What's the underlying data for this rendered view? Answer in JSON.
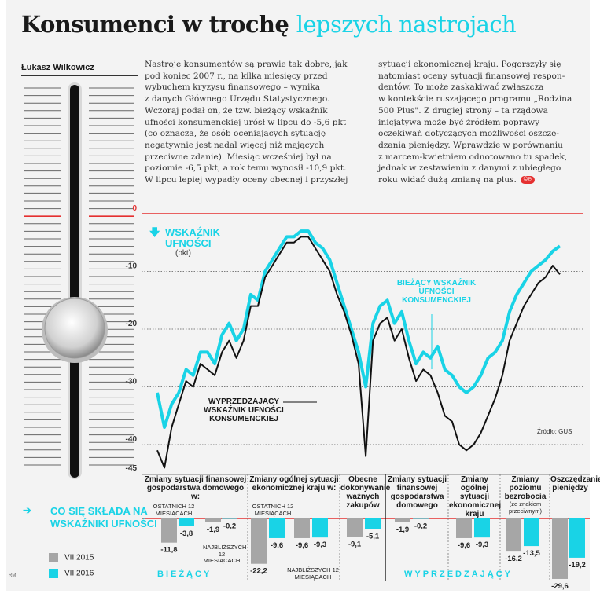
{
  "header": {
    "title_dark": "Konsumenci w trochę",
    "title_light": "lepszych nastrojach",
    "author": "Łukasz Wilkowicz",
    "copyright_mark": "©℗"
  },
  "article": {
    "col1": [
      "Nastroje konsumentów są prawie tak dobre, jak",
      "pod koniec 2007 r., na kilka miesięcy przed",
      "wybuchem kryzysu finansowego – wynika",
      "z danych Głównego Urzędu Statystycznego.",
      "Wczoraj podał on, że tzw. bieżący wskaźnik",
      "ufności konsumenckiej urósł w lipcu do -5,6 pkt",
      "(co oznacza, że osób oceniających sytuację",
      "negatywnie jest nadal więcej niż mających",
      "przeciwne zdanie). Miesiąc wcześniej był na",
      "poziomie -6,5 pkt, a rok temu wynosił -10,9 pkt.",
      "W lipcu lepiej wypadły oceny obecnej i przyszłej"
    ],
    "col2": [
      "sytuacji ekonomicznej kraju. Pogorszyły się",
      "natomiast oceny sytuacji finansowej respon-",
      "dentów. To może zaskakiwać zwłaszcza",
      "w kontekście ruszającego programu „Rodzina",
      "500 Plus\". Z drugiej strony – ta rządowa",
      "inicjatywa może być źródłem poprawy",
      "oczekiwań dotyczących możliwości oszczę-",
      "dzania pieniędzy. Wprawdzie w porównaniu",
      "z marcem-kwietniem odnotowano tu spadek,",
      "jednak w zestawieniu z danymi z ubiegłego",
      "roku widać dużą zmianę na plus."
    ]
  },
  "colors": {
    "current_index": "#19d3e6",
    "leading_index": "#111111",
    "zero_line": "#e53030",
    "bar_2015": "#a6a6a6",
    "bar_2016": "#19d3e6"
  },
  "line_chart": {
    "heading": "WSKAŹNIK UFNOŚCI",
    "unit": "(pkt)",
    "y_ticks": [
      "0",
      "-10",
      "-20",
      "-30",
      "-40",
      "-45"
    ],
    "label_current": "BIEŻĄCY WSKAŹNIK UFNOŚCI KONSUMENCKIEJ",
    "label_leading": "WYPRZEDZAJĄCY WSKAŹNIK UFNOŚCI KONSUMENCKIEJ",
    "source": "Źródło: GUS"
  },
  "bars_section": {
    "heading": "CO SIĘ SKŁADA NA WSKAŹNIKI UFNOŚCI",
    "legend": [
      "VII 2015",
      "VII 2016"
    ],
    "footer_left": "BIEŻĄCY",
    "footer_right": "WYPRZEDZAJĄCY",
    "groups": [
      {
        "title": "Zmiany sytuacji finansowej gospodarstwa domowego w:",
        "note": ""
      },
      {
        "title": "Zmiany ogólnej sytuacji ekonomicznej kraju w:",
        "note": ""
      },
      {
        "title": "Obecne dokonywanie ważnych zakupów",
        "note": ""
      },
      {
        "title": "Zmiany sytuacji finansowej gospodarstwa domowego",
        "note": ""
      },
      {
        "title": "Zmiany ogólnej sytuacji ekonomicznej kraju",
        "note": ""
      },
      {
        "title": "Zmiany poziomu bezrobocia",
        "note": "(ze znakiem przeciwnym)"
      },
      {
        "title": "Oszczędzanie pieniędzy",
        "note": ""
      }
    ],
    "sublabels": {
      "past12": "OSTATNICH 12 MIESIĄCACH",
      "next12": "NAJBLIŻSZYCH 12 MIESIĄCACH"
    }
  },
  "chart_data": [
    {
      "type": "line",
      "title": "WSKAŹNIK UFNOŚCI",
      "ylabel": "(pkt)",
      "ylim": [
        -45,
        0
      ],
      "yticks": [
        0,
        -10,
        -20,
        -30,
        -40,
        -45
      ],
      "grid": true,
      "series": [
        {
          "name": "BIEŻĄCY WSKAŹNIK UFNOŚCI KONSUMENCKIEJ",
          "values": [
            -31,
            -37,
            -33,
            -31,
            -27,
            -28,
            -24,
            -24,
            -26,
            -21,
            -19,
            -22,
            -20,
            -14,
            -15,
            -10,
            -8,
            -6,
            -4,
            -4,
            -3,
            -3,
            -5,
            -6,
            -8,
            -12,
            -16,
            -20,
            -24,
            -30,
            -19,
            -16,
            -15,
            -19,
            -17,
            -22,
            -26,
            -24,
            -25,
            -23,
            -27,
            -28,
            -30,
            -31,
            -30,
            -28,
            -25,
            -24,
            -22,
            -17,
            -14,
            -12,
            -10,
            -9,
            -8,
            -6.5,
            -5.6
          ]
        },
        {
          "name": "WYPRZEDZAJĄCY WSKAŹNIK UFNOŚCI KONSUMENCKIEJ",
          "values": [
            -41,
            -44,
            -37,
            -33,
            -29,
            -30,
            -26,
            -27,
            -28,
            -24,
            -22,
            -25,
            -22,
            -16,
            -16,
            -11,
            -9,
            -7,
            -5,
            -5,
            -4,
            -4,
            -6,
            -8,
            -10,
            -14,
            -17,
            -21,
            -26,
            -42,
            -22,
            -19,
            -18,
            -22,
            -20,
            -25,
            -29,
            -27,
            -28,
            -31,
            -35,
            -36,
            -40,
            -41,
            -40,
            -38,
            -35,
            -32,
            -28,
            -22,
            -19,
            -16,
            -14,
            -12,
            -11,
            -9,
            -10.5
          ]
        }
      ]
    },
    {
      "type": "bar",
      "title": "CO SIĘ SKŁADA NA WSKAŹNIKI UFNOŚCI",
      "categories": [
        "Zmiany sytuacji finansowej gospodarstwa domowego w: ostatnich 12 miesiącach",
        "Zmiany sytuacji finansowej gospodarstwa domowego w: najbliższych 12 miesiącach",
        "Zmiany ogólnej sytuacji ekonomicznej kraju w: ostatnich 12 miesiącach",
        "Zmiany ogólnej sytuacji ekonomicznej kraju w: najbliższych 12 miesiącach",
        "Obecne dokonywanie ważnych zakupów",
        "Zmiany sytuacji finansowej gospodarstwa domowego",
        "Zmiany ogólnej sytuacji ekonomicznej kraju",
        "Zmiany poziomu bezrobocia (ze znakiem przeciwnym)",
        "Oszczędzanie pieniędzy"
      ],
      "series": [
        {
          "name": "VII 2015",
          "values": [
            -11.8,
            -1.9,
            -22.2,
            -9.6,
            -9.1,
            -1.9,
            -9.6,
            -16.2,
            -29.6
          ]
        },
        {
          "name": "VII 2016",
          "values": [
            -3.8,
            -0.2,
            -9.6,
            -9.3,
            -5.1,
            -0.2,
            -9.3,
            -13.5,
            -19.2
          ]
        }
      ],
      "value_labels_2015": [
        "-11,8",
        "-1,9",
        "-22,2",
        "-9,6",
        "-9,1",
        "-1,9",
        "-9,6",
        "-16,2",
        "-29,6"
      ],
      "value_labels_2016": [
        "-3,8",
        "-0,2",
        "-9,6",
        "-9,3",
        "-5,1",
        "-0,2",
        "-9,3",
        "-13,5",
        "-19,2"
      ]
    }
  ]
}
